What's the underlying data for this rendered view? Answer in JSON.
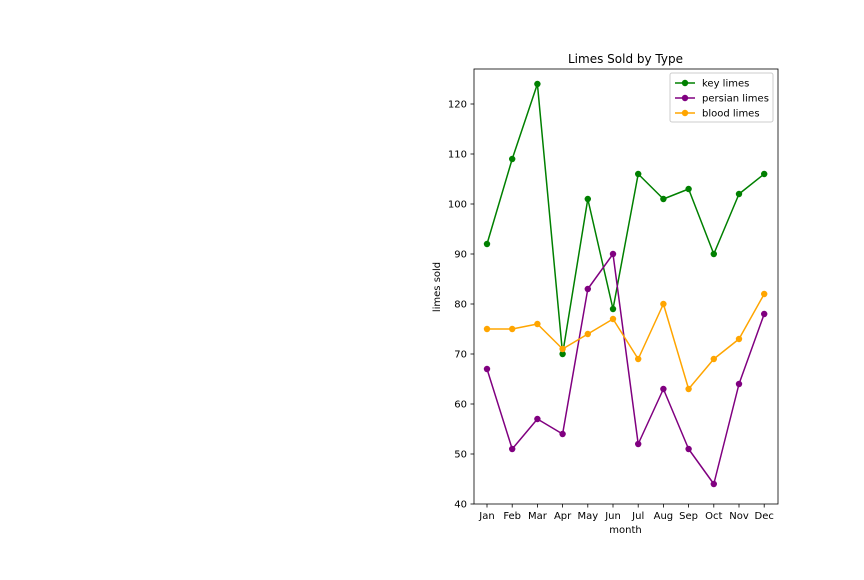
{
  "chart_data": {
    "type": "line",
    "title": "Limes Sold by Type",
    "xlabel": "month",
    "ylabel": "limes sold",
    "categories": [
      "Jan",
      "Feb",
      "Mar",
      "Apr",
      "May",
      "Jun",
      "Jul",
      "Aug",
      "Sep",
      "Oct",
      "Nov",
      "Dec"
    ],
    "ylim": [
      40,
      127
    ],
    "yticks": [
      40,
      50,
      60,
      70,
      80,
      90,
      100,
      110,
      120
    ],
    "grid": false,
    "legend_position": "top-right",
    "series": [
      {
        "name": "key limes",
        "color": "#008000",
        "marker": "circle",
        "values": [
          92,
          109,
          124,
          70,
          101,
          79,
          106,
          101,
          103,
          90,
          102,
          106
        ]
      },
      {
        "name": "persian limes",
        "color": "#800080",
        "marker": "circle",
        "values": [
          67,
          51,
          57,
          54,
          83,
          90,
          52,
          63,
          51,
          44,
          64,
          78
        ]
      },
      {
        "name": "blood limes",
        "color": "#ffa500",
        "marker": "circle",
        "values": [
          75,
          75,
          76,
          71,
          74,
          77,
          69,
          80,
          63,
          69,
          73,
          82
        ]
      }
    ]
  }
}
